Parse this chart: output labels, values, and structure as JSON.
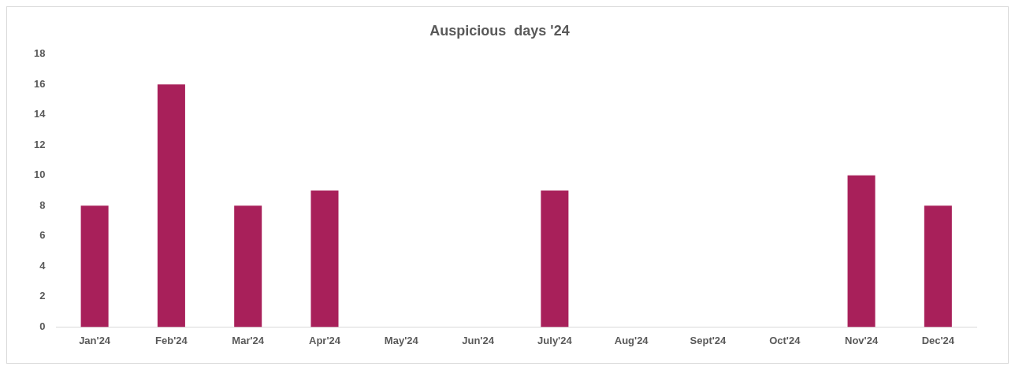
{
  "chart_data": {
    "type": "bar",
    "title": "Auspicious  days '24",
    "categories": [
      "Jan'24",
      "Feb'24",
      "Mar'24",
      "Apr'24",
      "May'24",
      "Jun'24",
      "July'24",
      "Aug'24",
      "Sept'24",
      "Oct'24",
      "Nov'24",
      "Dec'24"
    ],
    "values": [
      8,
      16,
      8,
      9,
      0,
      0,
      9,
      0,
      0,
      0,
      10,
      8
    ],
    "color": "#a8205a",
    "ylim": [
      0,
      18
    ],
    "yticks": [
      0,
      2,
      4,
      6,
      8,
      10,
      12,
      14,
      16,
      18
    ],
    "grid": false,
    "legend": false
  }
}
